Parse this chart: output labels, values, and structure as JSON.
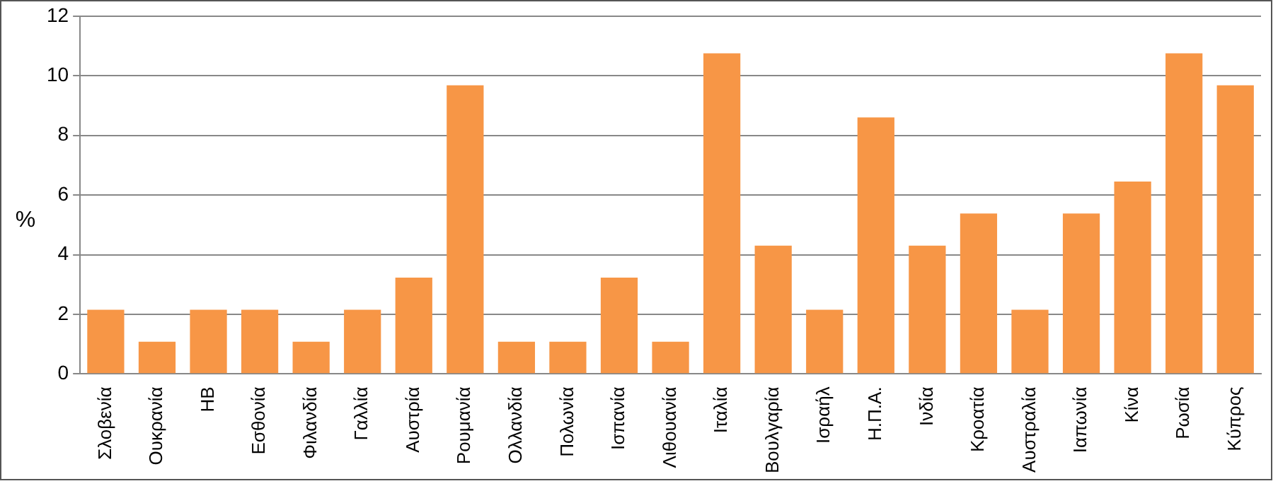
{
  "chart_data": {
    "type": "bar",
    "ylabel": "%",
    "categories": [
      "Σλοβενία",
      "Ουκρανία",
      "ΗΒ",
      "Εσθονία",
      "Φιλανδία",
      "Γαλλία",
      "Αυστρία",
      "Ρουμανία",
      "Ολλανδία",
      "Πολωνία",
      "Ισπανία",
      "Λιθουανία",
      "Ιταλία",
      "Βουλγαρία",
      "Ισραήλ",
      "Η.Π.Α.",
      "Ινδία",
      "Κροατία",
      "Αυστραλία",
      "Ιαπωνία",
      "Κίνα",
      "Ρωσία",
      "Κύπρος"
    ],
    "values": [
      2.15,
      1.08,
      2.15,
      2.15,
      1.08,
      2.15,
      3.23,
      9.68,
      1.08,
      1.08,
      3.23,
      1.08,
      10.75,
      4.3,
      2.15,
      8.6,
      4.3,
      5.38,
      2.15,
      5.38,
      6.45,
      10.75,
      9.68
    ],
    "color": "#f79646",
    "ylim": [
      0,
      12
    ],
    "yticks": [
      0,
      2,
      4,
      6,
      8,
      10,
      12
    ],
    "grid": "y",
    "legend": false
  }
}
